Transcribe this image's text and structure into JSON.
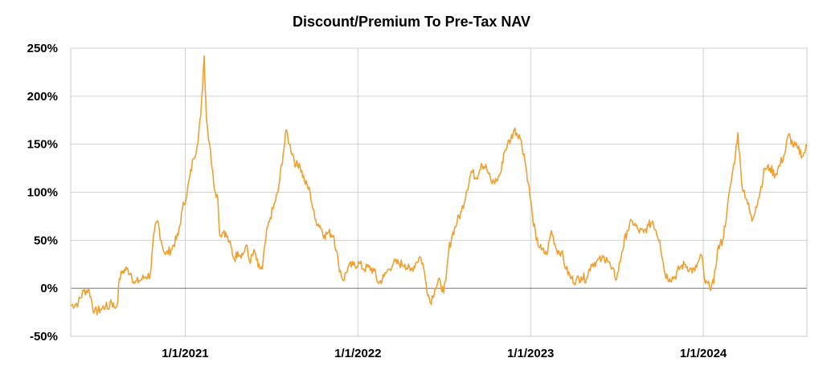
{
  "chart_data": {
    "type": "line",
    "title": "Discount/Premium To Pre-Tax NAV",
    "xlabel": "",
    "ylabel": "",
    "ylim": [
      -50,
      250
    ],
    "yticks": [
      -50,
      0,
      50,
      100,
      150,
      200,
      250
    ],
    "ytick_labels": [
      "-50%",
      "0%",
      "50%",
      "100%",
      "150%",
      "200%",
      "250%"
    ],
    "xlim": [
      "2020-05-04",
      "2024-08-07"
    ],
    "xticks": [
      "2021-01-01",
      "2022-01-01",
      "2023-01-01",
      "2024-01-01"
    ],
    "xtick_labels": [
      "1/1/2021",
      "1/1/2022",
      "1/1/2023",
      "1/1/2024"
    ],
    "grid": true,
    "legend": "none",
    "line_color": "#f0a030",
    "series": [
      {
        "name": "",
        "points": [
          [
            "2020-05-04",
            -18
          ],
          [
            "2020-05-20",
            -15
          ],
          [
            "2020-05-31",
            -3
          ],
          [
            "2020-06-12",
            -2
          ],
          [
            "2020-06-23",
            -25
          ],
          [
            "2020-07-06",
            -22
          ],
          [
            "2020-07-17",
            -18
          ],
          [
            "2020-07-22",
            -22
          ],
          [
            "2020-07-28",
            -12
          ],
          [
            "2020-08-04",
            -20
          ],
          [
            "2020-08-10",
            -18
          ],
          [
            "2020-08-15",
            10
          ],
          [
            "2020-08-22",
            18
          ],
          [
            "2020-08-31",
            20
          ],
          [
            "2020-09-09",
            15
          ],
          [
            "2020-09-16",
            5
          ],
          [
            "2020-09-26",
            8
          ],
          [
            "2020-10-09",
            12
          ],
          [
            "2020-10-19",
            14
          ],
          [
            "2020-10-28",
            60
          ],
          [
            "2020-11-04",
            70
          ],
          [
            "2020-11-11",
            50
          ],
          [
            "2020-11-20",
            35
          ],
          [
            "2020-12-02",
            40
          ],
          [
            "2020-12-17",
            55
          ],
          [
            "2020-12-26",
            82
          ],
          [
            "2021-01-05",
            100
          ],
          [
            "2021-01-18",
            135
          ],
          [
            "2021-01-26",
            148
          ],
          [
            "2021-02-03",
            180
          ],
          [
            "2021-02-10",
            242
          ],
          [
            "2021-02-15",
            175
          ],
          [
            "2021-02-23",
            145
          ],
          [
            "2021-03-02",
            110
          ],
          [
            "2021-03-11",
            93
          ],
          [
            "2021-03-15",
            55
          ],
          [
            "2021-03-24",
            60
          ],
          [
            "2021-04-04",
            48
          ],
          [
            "2021-04-15",
            30
          ],
          [
            "2021-04-22",
            38
          ],
          [
            "2021-05-03",
            35
          ],
          [
            "2021-05-10",
            45
          ],
          [
            "2021-05-17",
            28
          ],
          [
            "2021-05-28",
            38
          ],
          [
            "2021-06-04",
            22
          ],
          [
            "2021-06-13",
            20
          ],
          [
            "2021-06-21",
            55
          ],
          [
            "2021-06-30",
            74
          ],
          [
            "2021-07-07",
            85
          ],
          [
            "2021-07-16",
            100
          ],
          [
            "2021-07-27",
            140
          ],
          [
            "2021-08-03",
            165
          ],
          [
            "2021-08-09",
            150
          ],
          [
            "2021-08-16",
            140
          ],
          [
            "2021-08-23",
            128
          ],
          [
            "2021-08-30",
            130
          ],
          [
            "2021-09-10",
            112
          ],
          [
            "2021-09-22",
            100
          ],
          [
            "2021-10-02",
            72
          ],
          [
            "2021-10-13",
            65
          ],
          [
            "2021-10-22",
            55
          ],
          [
            "2021-10-31",
            58
          ],
          [
            "2021-11-11",
            55
          ],
          [
            "2021-11-21",
            25
          ],
          [
            "2021-12-01",
            8
          ],
          [
            "2021-12-11",
            22
          ],
          [
            "2021-12-22",
            24
          ],
          [
            "2022-01-04",
            26
          ],
          [
            "2022-01-13",
            20
          ],
          [
            "2022-01-24",
            22
          ],
          [
            "2022-02-04",
            18
          ],
          [
            "2022-02-14",
            5
          ],
          [
            "2022-02-25",
            12
          ],
          [
            "2022-03-07",
            20
          ],
          [
            "2022-03-17",
            26
          ],
          [
            "2022-03-28",
            26
          ],
          [
            "2022-04-10",
            25
          ],
          [
            "2022-04-22",
            18
          ],
          [
            "2022-05-03",
            26
          ],
          [
            "2022-05-12",
            33
          ],
          [
            "2022-05-18",
            26
          ],
          [
            "2022-05-25",
            5
          ],
          [
            "2022-06-03",
            -15
          ],
          [
            "2022-06-13",
            0
          ],
          [
            "2022-06-24",
            8
          ],
          [
            "2022-07-01",
            -5
          ],
          [
            "2022-07-06",
            8
          ],
          [
            "2022-07-12",
            40
          ],
          [
            "2022-07-19",
            55
          ],
          [
            "2022-07-30",
            70
          ],
          [
            "2022-08-08",
            80
          ],
          [
            "2022-08-18",
            100
          ],
          [
            "2022-08-29",
            122
          ],
          [
            "2022-09-08",
            115
          ],
          [
            "2022-09-19",
            130
          ],
          [
            "2022-09-30",
            125
          ],
          [
            "2022-10-10",
            110
          ],
          [
            "2022-10-21",
            112
          ],
          [
            "2022-10-31",
            122
          ],
          [
            "2022-11-05",
            140
          ],
          [
            "2022-11-13",
            150
          ],
          [
            "2022-11-20",
            155
          ],
          [
            "2022-11-27",
            165
          ],
          [
            "2022-12-08",
            160
          ],
          [
            "2022-12-18",
            140
          ],
          [
            "2022-12-27",
            110
          ],
          [
            "2023-01-05",
            75
          ],
          [
            "2023-01-13",
            50
          ],
          [
            "2023-01-24",
            40
          ],
          [
            "2023-02-04",
            35
          ],
          [
            "2023-02-14",
            60
          ],
          [
            "2023-02-25",
            40
          ],
          [
            "2023-03-07",
            38
          ],
          [
            "2023-03-17",
            20
          ],
          [
            "2023-03-28",
            10
          ],
          [
            "2023-04-07",
            8
          ],
          [
            "2023-04-18",
            12
          ],
          [
            "2023-04-29",
            10
          ],
          [
            "2023-05-09",
            25
          ],
          [
            "2023-05-20",
            28
          ],
          [
            "2023-05-31",
            30
          ],
          [
            "2023-06-11",
            32
          ],
          [
            "2023-06-21",
            20
          ],
          [
            "2023-07-02",
            10
          ],
          [
            "2023-07-13",
            38
          ],
          [
            "2023-07-24",
            60
          ],
          [
            "2023-08-04",
            70
          ],
          [
            "2023-08-17",
            60
          ],
          [
            "2023-08-28",
            58
          ],
          [
            "2023-09-07",
            65
          ],
          [
            "2023-09-16",
            70
          ],
          [
            "2023-09-23",
            60
          ],
          [
            "2023-10-01",
            50
          ],
          [
            "2023-10-12",
            15
          ],
          [
            "2023-10-22",
            10
          ],
          [
            "2023-11-02",
            12
          ],
          [
            "2023-11-13",
            22
          ],
          [
            "2023-11-24",
            25
          ],
          [
            "2023-12-03",
            20
          ],
          [
            "2023-12-14",
            18
          ],
          [
            "2023-12-22",
            28
          ],
          [
            "2023-12-28",
            35
          ],
          [
            "2024-01-05",
            5
          ],
          [
            "2024-01-14",
            2
          ],
          [
            "2024-01-23",
            5
          ],
          [
            "2024-01-31",
            40
          ],
          [
            "2024-02-11",
            50
          ],
          [
            "2024-02-20",
            80
          ],
          [
            "2024-03-01",
            115
          ],
          [
            "2024-03-09",
            140
          ],
          [
            "2024-03-14",
            162
          ],
          [
            "2024-03-22",
            110
          ],
          [
            "2024-04-02",
            92
          ],
          [
            "2024-04-13",
            70
          ],
          [
            "2024-04-21",
            85
          ],
          [
            "2024-04-30",
            100
          ],
          [
            "2024-05-10",
            125
          ],
          [
            "2024-05-21",
            125
          ],
          [
            "2024-06-01",
            118
          ],
          [
            "2024-06-12",
            130
          ],
          [
            "2024-06-21",
            140
          ],
          [
            "2024-06-29",
            160
          ],
          [
            "2024-07-08",
            150
          ],
          [
            "2024-07-19",
            145
          ],
          [
            "2024-07-30",
            138
          ],
          [
            "2024-08-07",
            148
          ]
        ]
      }
    ]
  }
}
